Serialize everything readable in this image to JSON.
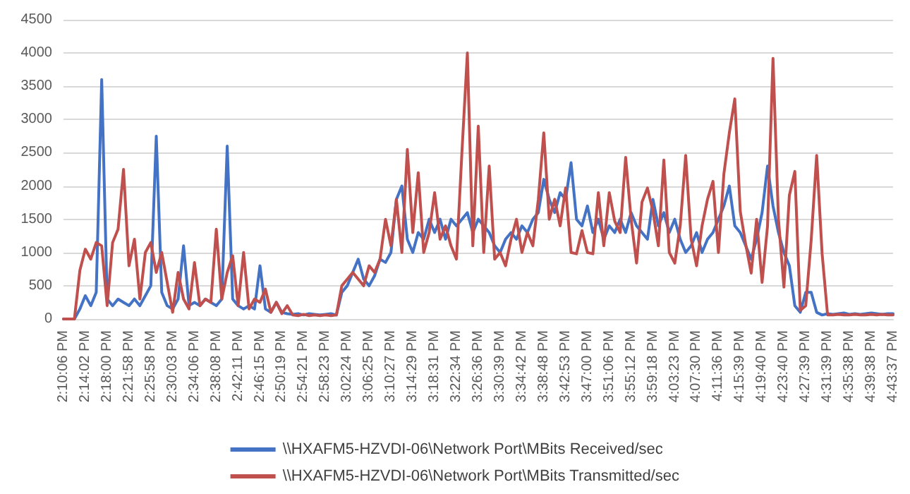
{
  "chart_data": {
    "type": "line",
    "categories": [
      "2:10:06 PM",
      null,
      null,
      null,
      "2:14:02 PM",
      null,
      null,
      null,
      "2:18:00 PM",
      null,
      null,
      null,
      "2:21:58 PM",
      null,
      null,
      null,
      "2:25:58 PM",
      null,
      null,
      null,
      "2:30:03 PM",
      null,
      null,
      null,
      "2:34:06 PM",
      null,
      null,
      null,
      "2:38:08 PM",
      null,
      null,
      null,
      "2:42:11 PM",
      null,
      null,
      null,
      "2:46:15 PM",
      null,
      null,
      null,
      "2:50:19 PM",
      null,
      null,
      null,
      "2:54:21 PM",
      null,
      null,
      null,
      "2:58:23 PM",
      null,
      null,
      null,
      "3:02:24 PM",
      null,
      null,
      null,
      "3:06:25 PM",
      null,
      null,
      null,
      "3:10:27 PM",
      null,
      null,
      null,
      "3:14:29 PM",
      null,
      null,
      null,
      "3:18:31 PM",
      null,
      null,
      null,
      "3:22:34 PM",
      null,
      null,
      null,
      "3:26:36 PM",
      null,
      null,
      null,
      "3:30:39 PM",
      null,
      null,
      null,
      "3:34:42 PM",
      null,
      null,
      null,
      "3:38:48 PM",
      null,
      null,
      null,
      "3:42:53 PM",
      null,
      null,
      null,
      "3:47:00 PM",
      null,
      null,
      null,
      "3:51:06 PM",
      null,
      null,
      null,
      "3:55:12 PM",
      null,
      null,
      null,
      "3:59:18 PM",
      null,
      null,
      null,
      "4:03:23 PM",
      null,
      null,
      null,
      "4:07:30 PM",
      null,
      null,
      null,
      "4:11:36 PM",
      null,
      null,
      null,
      "4:15:39 PM",
      null,
      null,
      null,
      "4:19:40 PM",
      null,
      null,
      null,
      "4:23:40 PM",
      null,
      null,
      null,
      "4:27:39 PM",
      null,
      null,
      null,
      "4:31:39 PM",
      null,
      null,
      null,
      "4:35:38 PM",
      null,
      null,
      null,
      "4:39:38 PM",
      null,
      null,
      null,
      "4:43:37 PM"
    ],
    "series": [
      {
        "name": "\\\\HXAFM5-HZVDI-06\\Network Port\\MBits Received/sec",
        "color": "#4472c4",
        "values": [
          0,
          0,
          0,
          150,
          350,
          200,
          400,
          3600,
          300,
          200,
          300,
          250,
          200,
          300,
          200,
          350,
          500,
          2750,
          400,
          200,
          150,
          300,
          1100,
          200,
          250,
          200,
          300,
          250,
          200,
          300,
          2600,
          300,
          200,
          150,
          200,
          150,
          800,
          150,
          100,
          250,
          100,
          80,
          70,
          80,
          60,
          80,
          70,
          60,
          70,
          80,
          60,
          400,
          500,
          700,
          900,
          600,
          500,
          650,
          900,
          850,
          1000,
          1800,
          2000,
          1200,
          1000,
          1300,
          1200,
          1500,
          1300,
          1500,
          1200,
          1500,
          1400,
          1500,
          1600,
          1300,
          1500,
          1400,
          1300,
          1100,
          1000,
          1200,
          1300,
          1200,
          1400,
          1300,
          1500,
          1600,
          2100,
          1800,
          1600,
          1900,
          1800,
          2350,
          1500,
          1400,
          1700,
          1300,
          1500,
          1200,
          1400,
          1300,
          1500,
          1300,
          1600,
          1400,
          1300,
          1200,
          1800,
          1400,
          1600,
          1300,
          1500,
          1200,
          1000,
          1100,
          1300,
          1000,
          1200,
          1300,
          1500,
          1700,
          2000,
          1400,
          1300,
          1100,
          900,
          1200,
          1600,
          2300,
          1700,
          1300,
          1000,
          800,
          200,
          100,
          400,
          400,
          100,
          60,
          80,
          70,
          80,
          90,
          70,
          80,
          70,
          80,
          90,
          80,
          70,
          80,
          80
        ]
      },
      {
        "name": "\\\\HXAFM5-HZVDI-06\\Network Port\\MBits Transmitted/sec",
        "color": "#c0504d",
        "values": [
          0,
          0,
          0,
          730,
          1050,
          900,
          1150,
          1100,
          200,
          1150,
          1350,
          2250,
          800,
          1200,
          300,
          1000,
          1150,
          700,
          1000,
          550,
          100,
          700,
          300,
          150,
          850,
          200,
          300,
          250,
          1350,
          300,
          700,
          950,
          200,
          1000,
          150,
          300,
          250,
          450,
          100,
          250,
          80,
          200,
          60,
          50,
          70,
          50,
          60,
          50,
          60,
          50,
          60,
          500,
          600,
          700,
          600,
          500,
          800,
          700,
          900,
          1500,
          1100,
          1800,
          1000,
          2550,
          1300,
          2200,
          1000,
          1300,
          1900,
          1200,
          1400,
          1100,
          900,
          2500,
          4000,
          1100,
          2900,
          1000,
          2300,
          900,
          1000,
          800,
          1200,
          1500,
          1000,
          1300,
          1100,
          1800,
          2800,
          1500,
          1800,
          1400,
          1970,
          1000,
          980,
          1330,
          1000,
          980,
          1900,
          1100,
          1900,
          1470,
          1300,
          2430,
          1500,
          840,
          1760,
          1970,
          1620,
          1100,
          2390,
          1000,
          840,
          1400,
          2460,
          1200,
          800,
          1400,
          1800,
          2070,
          1000,
          2180,
          2800,
          3310,
          1620,
          1120,
          690,
          1500,
          550,
          1400,
          3920,
          1500,
          480,
          1860,
          2220,
          130,
          200,
          1190,
          2460,
          980,
          60,
          60,
          70,
          60,
          60,
          70,
          60,
          60,
          70,
          60,
          70,
          60,
          60
        ]
      }
    ],
    "ylim": [
      0,
      4500
    ],
    "yticks": [
      0,
      500,
      1000,
      1500,
      2000,
      2500,
      3000,
      3500,
      4000,
      4500
    ],
    "grid": "y",
    "legend": "bottom",
    "marker": "none",
    "line_style": "solid"
  }
}
